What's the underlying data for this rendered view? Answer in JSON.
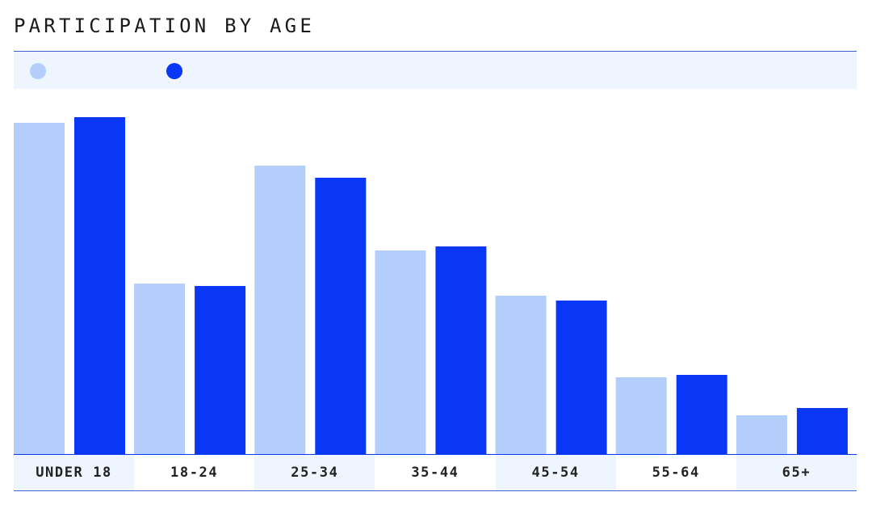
{
  "title": "PARTICIPATION BY AGE",
  "colors": {
    "series_a": "#b4cefb",
    "series_b": "#0a37f5",
    "shade": "#eff5fe"
  },
  "chart_data": {
    "type": "bar",
    "title": "PARTICIPATION BY AGE",
    "categories": [
      "UNDER 18",
      "18-24",
      "25-34",
      "35-44",
      "45-54",
      "55-64",
      "65+"
    ],
    "series": [
      {
        "values": [
          410,
          211,
          357,
          252,
          196,
          95,
          48
        ],
        "color": "#b4cefb"
      },
      {
        "values": [
          417,
          208,
          342,
          257,
          190,
          98,
          57
        ],
        "color": "#0a37f5"
      }
    ],
    "ylim": [
      0,
      420
    ],
    "grid": false,
    "legend": "top-left"
  }
}
